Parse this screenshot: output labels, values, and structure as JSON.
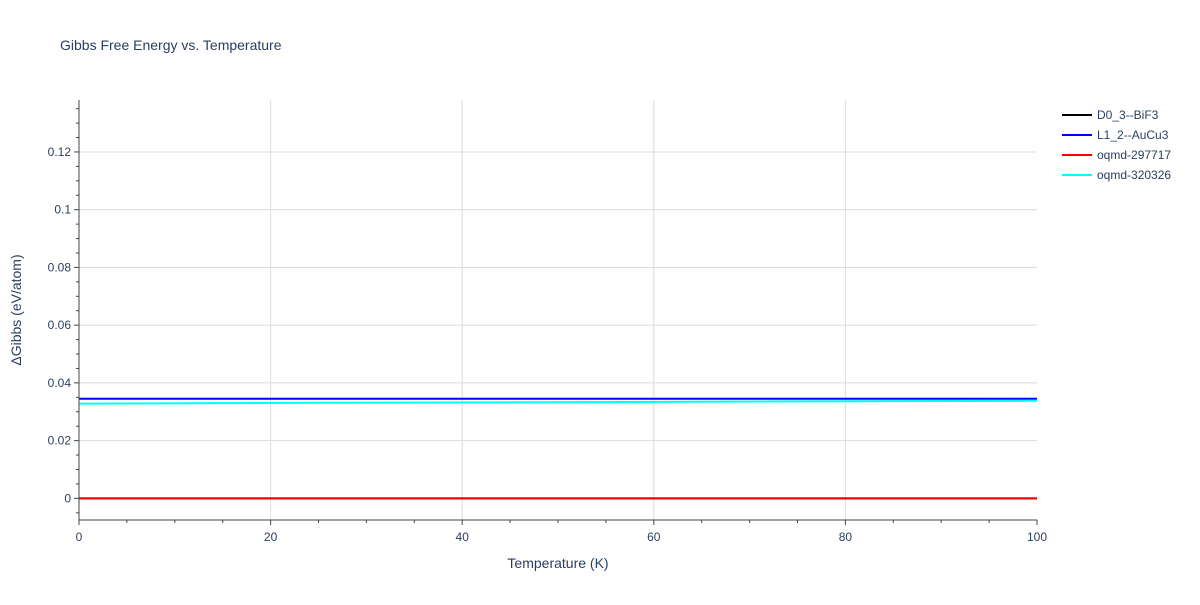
{
  "chart_data": {
    "type": "line",
    "title": "Gibbs Free Energy vs. Temperature",
    "xlabel": "Temperature (K)",
    "ylabel": "ΔGibbs (eV/atom)",
    "xlim": [
      0,
      100
    ],
    "ylim": [
      -0.0075,
      0.138
    ],
    "xticks": [
      0,
      20,
      40,
      60,
      80,
      100
    ],
    "yticks": [
      0,
      0.02,
      0.04,
      0.06,
      0.08,
      0.1,
      0.12
    ],
    "ytick_labels": [
      "0",
      "0.02",
      "0.04",
      "0.06",
      "0.08",
      "0.1",
      "0.12"
    ],
    "grid": true,
    "legend_position": "top-right",
    "series": [
      {
        "name": "D0_3--BiF3",
        "color": "#000000",
        "x": [
          0,
          100
        ],
        "y": [
          0,
          0
        ]
      },
      {
        "name": "L1_2--AuCu3",
        "color": "#0000ff",
        "x": [
          0,
          100
        ],
        "y": [
          0.0345,
          0.0345
        ]
      },
      {
        "name": "oqmd-297717",
        "color": "#ff0000",
        "x": [
          0,
          100
        ],
        "y": [
          0,
          0
        ]
      },
      {
        "name": "oqmd-320326",
        "color": "#00ffff",
        "x": [
          0,
          25,
          50,
          75,
          100
        ],
        "y": [
          0.0328,
          0.0331,
          0.0333,
          0.0336,
          0.0338
        ]
      }
    ]
  }
}
